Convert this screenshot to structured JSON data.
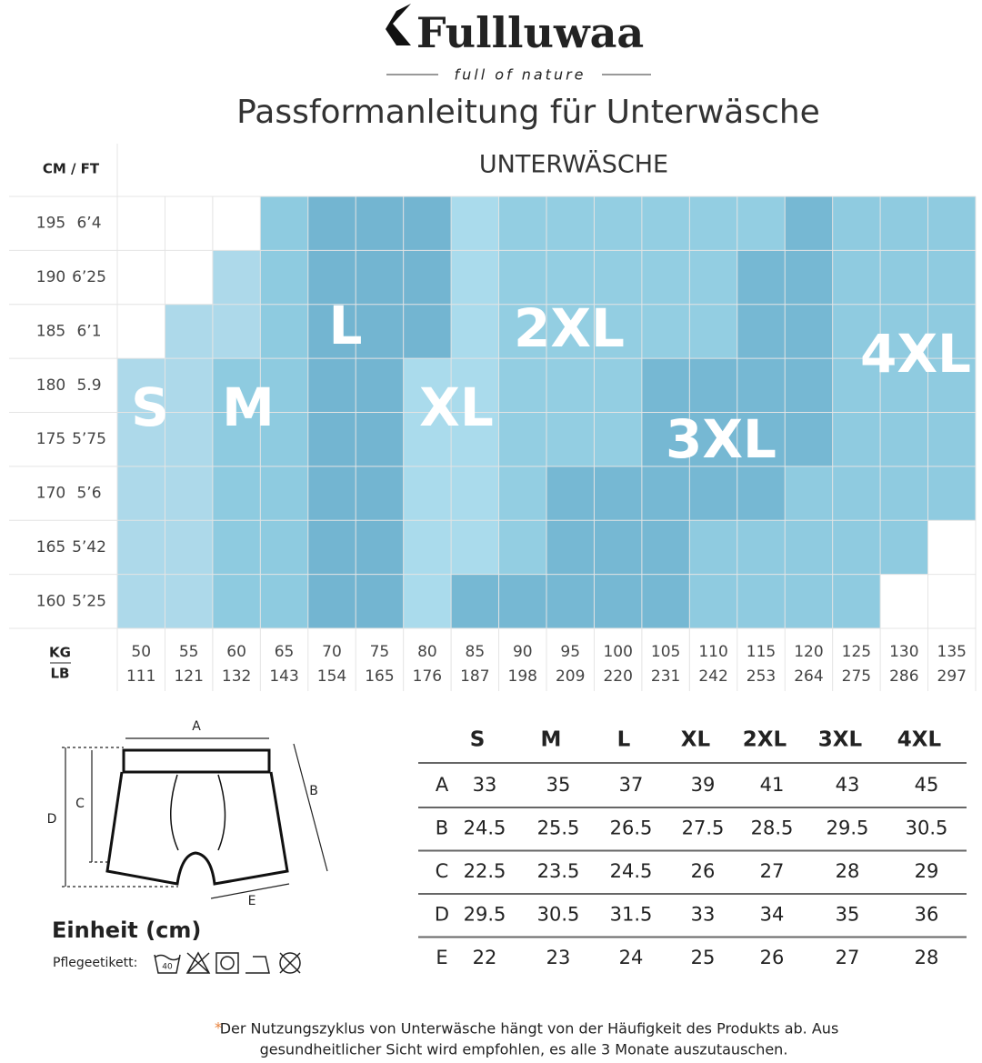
{
  "brand": {
    "name": "Fullluwaa",
    "tagline": "full of nature"
  },
  "title": "Passformanleitung für Unterwäsche",
  "grid": {
    "corner": "CM / FT",
    "header": "UNTERWÄSCHE",
    "heights": [
      [
        "195",
        "6’4"
      ],
      [
        "190",
        "6’25"
      ],
      [
        "185",
        "6’1"
      ],
      [
        "180",
        "5.9"
      ],
      [
        "175",
        "5’75"
      ],
      [
        "170",
        "5’6"
      ],
      [
        "165",
        "5’42"
      ],
      [
        "160",
        "5’25"
      ]
    ],
    "weight_header": [
      "KG",
      "LB"
    ],
    "weights": [
      [
        50,
        111
      ],
      [
        55,
        121
      ],
      [
        60,
        132
      ],
      [
        65,
        143
      ],
      [
        70,
        154
      ],
      [
        75,
        165
      ],
      [
        80,
        176
      ],
      [
        85,
        187
      ],
      [
        90,
        198
      ],
      [
        95,
        209
      ],
      [
        100,
        220
      ],
      [
        105,
        231
      ],
      [
        110,
        242
      ],
      [
        115,
        253
      ],
      [
        120,
        264
      ],
      [
        125,
        275
      ],
      [
        130,
        286
      ],
      [
        135,
        297
      ]
    ],
    "sizes": [
      "S",
      "M",
      "L",
      "XL",
      "2XL",
      "3XL",
      "4XL"
    ]
  },
  "diagram": {
    "labels": [
      "A",
      "B",
      "C",
      "D",
      "E"
    ],
    "unit": "Einheit (cm)",
    "care_label": "Pflegeetikett:",
    "wash_temp": "40"
  },
  "table": {
    "header": [
      "S",
      "M",
      "L",
      "XL",
      "2XL",
      "3XL",
      "4XL"
    ],
    "rows": [
      [
        "A",
        33,
        35,
        37,
        39,
        41,
        43,
        45
      ],
      [
        "B",
        24.5,
        25.5,
        26.5,
        27.5,
        28.5,
        29.5,
        30.5
      ],
      [
        "C",
        22.5,
        23.5,
        24.5,
        26,
        27,
        28,
        29
      ],
      [
        "D",
        29.5,
        30.5,
        31.5,
        33,
        34,
        35,
        36
      ],
      [
        "E",
        22,
        23,
        24,
        25,
        26,
        27,
        28
      ]
    ]
  },
  "footnote": {
    "mark": "*",
    "lines": [
      "Der Nutzungszyklus von Unterwäsche hängt von der Häufigkeit des Produkts ab. Aus",
      "gesundheitlicher Sicht wird empfohlen, es alle 3 Monate auszutauschen."
    ]
  }
}
